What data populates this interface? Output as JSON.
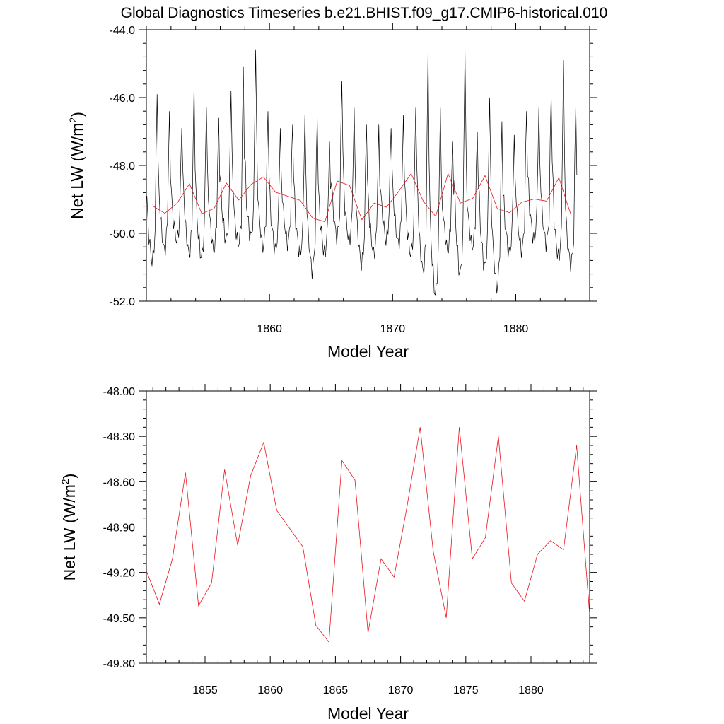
{
  "title": "Global Diagnostics Timeseries b.e21.BHIST.f09_g17.CMIP6-historical.010",
  "colors": {
    "monthly": "#000000",
    "annual": "#e8141c",
    "axis": "#000000"
  },
  "chart_data": [
    {
      "type": "line",
      "xlabel": "Model Year",
      "ylabel_main": "Net LW (W/m",
      "ylabel_sup": "2",
      "ylabel_end": ")",
      "xlim": [
        1850.0,
        1886.0
      ],
      "ylim": [
        -52.0,
        -44.0
      ],
      "xticks": [
        1860,
        1870,
        1880
      ],
      "xtick_labels": [
        "1860",
        "1870",
        "1880"
      ],
      "yticks": [
        -52.0,
        -50.0,
        -48.0,
        -46.0,
        -44.0
      ],
      "ytick_labels": [
        "-52.0",
        "-50.0",
        "-48.0",
        "-46.0",
        "-44.0"
      ],
      "series": [
        {
          "name": "monthly",
          "monthly_start": 1850.0,
          "monthly_peaks": [
            -45.9,
            -46.4,
            -46.9,
            -45.6,
            -46.3,
            -46.6,
            -45.8,
            -45.1,
            -44.6,
            -46.4,
            -46.9,
            -46.8,
            -46.5,
            -46.6,
            -47.3,
            -45.5,
            -46.3,
            -46.8,
            -46.8,
            -46.9,
            -46.5,
            -46.3,
            -44.6,
            -46.3,
            -47.3,
            -44.6,
            -47.0,
            -46.0,
            -46.7,
            -47.1,
            -46.4,
            -46.3,
            -45.9,
            -44.9,
            -46.2
          ],
          "monthly_troughs": [
            -50.8,
            -50.5,
            -50.2,
            -50.6,
            -50.7,
            -50.5,
            -50.2,
            -50.3,
            -50.1,
            -50.4,
            -50.5,
            -50.3,
            -50.6,
            -51.1,
            -50.6,
            -50.1,
            -50.2,
            -50.9,
            -50.6,
            -50.2,
            -50.3,
            -50.6,
            -51.1,
            -51.8,
            -50.5,
            -51.2,
            -50.4,
            -51.0,
            -51.6,
            -50.6,
            -50.5,
            -50.2,
            -50.3,
            -50.7,
            -50.9
          ],
          "monthly_mid": [
            -49.9,
            -49.6,
            -49.5,
            -49.7,
            -49.8,
            -49.6,
            -49.4,
            -49.6,
            -49.3,
            -49.5,
            -49.7,
            -49.5,
            -49.8,
            -50.1,
            -49.8,
            -49.3,
            -49.4,
            -50.0,
            -49.8,
            -49.4,
            -49.5,
            -49.8,
            -50.1,
            -50.5,
            -49.7,
            -50.0,
            -49.6,
            -50.0,
            -50.4,
            -49.8,
            -49.7,
            -49.4,
            -49.5,
            -49.9,
            -50.1
          ]
        },
        {
          "name": "annual",
          "x": [
            1850.5,
            1851.5,
            1852.5,
            1853.5,
            1854.5,
            1855.5,
            1856.5,
            1857.5,
            1858.5,
            1859.5,
            1860.5,
            1861.5,
            1862.5,
            1863.5,
            1864.5,
            1865.5,
            1866.5,
            1867.5,
            1868.5,
            1869.5,
            1870.5,
            1871.5,
            1872.5,
            1873.5,
            1874.5,
            1875.5,
            1876.5,
            1877.5,
            1878.5,
            1879.5,
            1880.5,
            1881.5,
            1882.5,
            1883.5,
            1884.5
          ],
          "y": [
            -49.19,
            -49.41,
            -49.11,
            -48.54,
            -49.42,
            -49.27,
            -48.52,
            -49.02,
            -48.56,
            -48.34,
            -48.79,
            -48.91,
            -49.03,
            -49.55,
            -49.66,
            -48.46,
            -48.59,
            -49.6,
            -49.11,
            -49.23,
            -48.76,
            -48.24,
            -49.06,
            -49.5,
            -48.24,
            -49.11,
            -48.97,
            -48.3,
            -49.27,
            -49.39,
            -49.08,
            -48.99,
            -49.05,
            -48.36,
            -49.48
          ]
        }
      ]
    },
    {
      "type": "line",
      "xlabel": "Model Year",
      "ylabel_main": "Net LW (W/m",
      "ylabel_sup": "2",
      "ylabel_end": ")",
      "xlim": [
        1850.5,
        1884.5
      ],
      "ylim": [
        -49.8,
        -48.0
      ],
      "xticks": [
        1855,
        1860,
        1865,
        1870,
        1875,
        1880
      ],
      "xtick_labels": [
        "1855",
        "1860",
        "1865",
        "1870",
        "1875",
        "1880"
      ],
      "yticks": [
        -49.8,
        -49.5,
        -49.2,
        -48.9,
        -48.6,
        -48.3,
        -48.0
      ],
      "ytick_labels": [
        "-49.80",
        "-49.50",
        "-49.20",
        "-48.90",
        "-48.60",
        "-48.30",
        "-48.00"
      ],
      "series": [
        {
          "name": "annual",
          "x": [
            1850.5,
            1851.5,
            1852.5,
            1853.5,
            1854.5,
            1855.5,
            1856.5,
            1857.5,
            1858.5,
            1859.5,
            1860.5,
            1861.5,
            1862.5,
            1863.5,
            1864.5,
            1865.5,
            1866.5,
            1867.5,
            1868.5,
            1869.5,
            1870.5,
            1871.5,
            1872.5,
            1873.5,
            1874.5,
            1875.5,
            1876.5,
            1877.5,
            1878.5,
            1879.5,
            1880.5,
            1881.5,
            1882.5,
            1883.5,
            1884.5
          ],
          "y": [
            -49.19,
            -49.41,
            -49.11,
            -48.54,
            -49.42,
            -49.27,
            -48.52,
            -49.02,
            -48.56,
            -48.34,
            -48.79,
            -48.91,
            -49.03,
            -49.55,
            -49.66,
            -48.46,
            -48.59,
            -49.6,
            -49.11,
            -49.23,
            -48.76,
            -48.24,
            -49.06,
            -49.5,
            -48.24,
            -49.11,
            -48.97,
            -48.3,
            -49.27,
            -49.39,
            -49.08,
            -48.99,
            -49.05,
            -48.36,
            -49.48
          ]
        }
      ]
    }
  ]
}
